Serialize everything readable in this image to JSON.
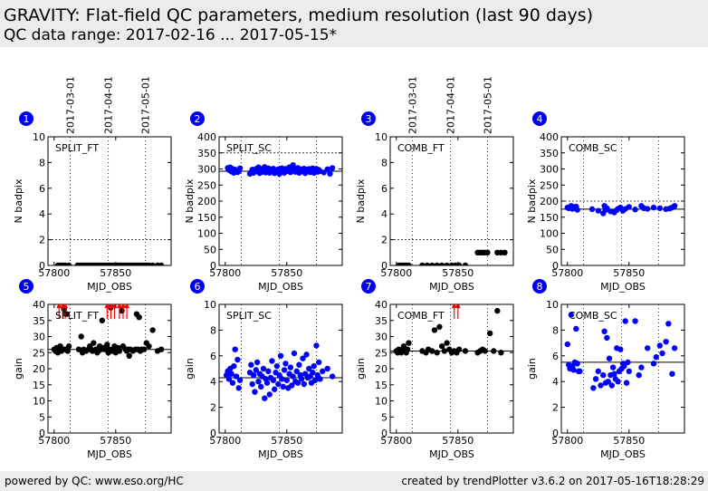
{
  "header": {
    "title": "GRAVITY: Flat-field QC parameters, medium resolution (last 90 days)",
    "subtitle": "QC data range: 2017-02-16 ... 2017-05-15*"
  },
  "footer": {
    "left": "powered by QC: www.eso.org/HC",
    "right": "created by trendPlotter v3.6.2 on 2017-05-16T18:28:29"
  },
  "colors": {
    "blue": "#0000ff",
    "black": "#000000",
    "red": "#ff0000",
    "badge": "#0000ee"
  },
  "date_labels": [
    {
      "label": "2017-03-01",
      "mjd": 57813
    },
    {
      "label": "2017-04-01",
      "mjd": 57844
    },
    {
      "label": "2017-05-01",
      "mjd": 57874
    }
  ],
  "chart_data": [
    {
      "id": "1",
      "type": "scatter",
      "label": "SPLIT_FT",
      "xlabel": "MJD_OBS",
      "ylabel": "N badpix",
      "xlim": [
        57795,
        57895
      ],
      "ylim": [
        0,
        10
      ],
      "yticks": [
        0,
        2,
        4,
        6,
        8,
        10
      ],
      "xticks": [
        57800,
        57850
      ],
      "ref_line": 0,
      "threshold": 2,
      "color": "black",
      "show_dates": true,
      "x": [
        57803,
        57805,
        57807,
        57809,
        57812,
        57819,
        57821,
        57823,
        57825,
        57827,
        57829,
        57831,
        57833,
        57835,
        57837,
        57839,
        57841,
        57843,
        57845,
        57847,
        57849,
        57851,
        57853,
        57855,
        57857,
        57859,
        57861,
        57863,
        57865,
        57867,
        57869,
        57871,
        57873,
        57875,
        57877,
        57880,
        57884,
        57887
      ],
      "y": [
        0,
        0,
        0,
        0,
        0,
        0,
        0,
        0,
        0,
        0,
        0,
        0,
        0,
        0,
        0,
        0,
        0,
        0,
        0,
        0,
        0,
        0,
        0,
        0,
        0,
        0,
        0,
        0,
        0,
        0,
        0,
        0,
        0,
        0,
        0,
        0,
        0,
        0
      ]
    },
    {
      "id": "2",
      "type": "scatter",
      "label": "SPLIT_SC",
      "xlabel": "MJD_OBS",
      "ylabel": "N badpix",
      "xlim": [
        57795,
        57895
      ],
      "ylim": [
        0,
        400
      ],
      "yticks": [
        0,
        50,
        100,
        150,
        200,
        250,
        300,
        350,
        400
      ],
      "xticks": [
        57800,
        57850
      ],
      "ref_line": 293,
      "threshold": 350,
      "color": "blue",
      "show_dates": false,
      "x": [
        57802,
        57803,
        57804,
        57805,
        57806,
        57807,
        57808,
        57809,
        57810,
        57811,
        57812,
        57820,
        57821,
        57822,
        57823,
        57824,
        57825,
        57826,
        57827,
        57828,
        57829,
        57830,
        57831,
        57832,
        57833,
        57834,
        57835,
        57836,
        57837,
        57838,
        57839,
        57840,
        57841,
        57842,
        57843,
        57844,
        57845,
        57846,
        57847,
        57848,
        57849,
        57850,
        57851,
        57852,
        57853,
        57854,
        57855,
        57856,
        57857,
        57858,
        57859,
        57860,
        57861,
        57862,
        57863,
        57864,
        57865,
        57866,
        57867,
        57868,
        57869,
        57870,
        57871,
        57872,
        57873,
        57874,
        57875,
        57876,
        57877,
        57880,
        57883,
        57885,
        57887
      ],
      "y": [
        303,
        297,
        305,
        292,
        300,
        288,
        298,
        295,
        290,
        293,
        302,
        285,
        290,
        298,
        288,
        295,
        300,
        292,
        305,
        287,
        296,
        300,
        291,
        306,
        289,
        295,
        302,
        288,
        297,
        292,
        301,
        287,
        296,
        290,
        299,
        285,
        295,
        302,
        291,
        288,
        300,
        297,
        293,
        305,
        290,
        298,
        312,
        295,
        291,
        300,
        303,
        288,
        296,
        299,
        292,
        301,
        287,
        298,
        294,
        300,
        290,
        296,
        302,
        288,
        295,
        300,
        291,
        297,
        293,
        289,
        299,
        285,
        303
      ]
    },
    {
      "id": "3",
      "type": "scatter",
      "label": "COMB_FT",
      "xlabel": "MJD_OBS",
      "ylabel": "N badpix",
      "xlim": [
        57795,
        57895
      ],
      "ylim": [
        0,
        10
      ],
      "yticks": [
        0,
        2,
        4,
        6,
        8,
        10
      ],
      "xticks": [
        57800,
        57850
      ],
      "ref_line": 0,
      "threshold": 2,
      "color": "black",
      "show_dates": true,
      "x": [
        57802,
        57804,
        57806,
        57808,
        57810,
        57821,
        57825,
        57829,
        57833,
        57837,
        57841,
        57845,
        57848,
        57851,
        57856,
        57866,
        57868,
        57870,
        57872,
        57874,
        57882,
        57885,
        57888
      ],
      "y": [
        0,
        0,
        0,
        0,
        0,
        0,
        0,
        0,
        0,
        0,
        0,
        0,
        0,
        0,
        0,
        1,
        1,
        1,
        1,
        1,
        1,
        1,
        1
      ]
    },
    {
      "id": "4",
      "type": "scatter",
      "label": "COMB_SC",
      "xlabel": "MJD_OBS",
      "ylabel": "N badpix",
      "xlim": [
        57795,
        57895
      ],
      "ylim": [
        0,
        400
      ],
      "yticks": [
        0,
        50,
        100,
        150,
        200,
        250,
        300,
        350,
        400
      ],
      "xticks": [
        57800,
        57850
      ],
      "ref_line": 175,
      "threshold": 200,
      "color": "blue",
      "show_dates": false,
      "x": [
        57800,
        57801,
        57802,
        57803,
        57804,
        57805,
        57806,
        57807,
        57808,
        57820,
        57825,
        57829,
        57830,
        57831,
        57832,
        57835,
        57838,
        57840,
        57841,
        57843,
        57845,
        57847,
        57850,
        57855,
        57860,
        57862,
        57865,
        57870,
        57875,
        57880,
        57883,
        57885,
        57887
      ],
      "y": [
        180,
        178,
        182,
        185,
        176,
        179,
        181,
        183,
        173,
        175,
        170,
        162,
        185,
        173,
        178,
        168,
        165,
        172,
        176,
        180,
        170,
        176,
        182,
        174,
        185,
        178,
        176,
        180,
        178,
        175,
        177,
        180,
        185
      ]
    },
    {
      "id": "5",
      "type": "scatter",
      "label": "SPLIT_FT",
      "xlabel": "MJD_OBS",
      "ylabel": "gain",
      "xlim": [
        57795,
        57895
      ],
      "ylim": [
        0,
        40
      ],
      "yticks": [
        0,
        5,
        10,
        15,
        20,
        25,
        30,
        35,
        40
      ],
      "xticks": [
        57800,
        57850
      ],
      "ref_line": 26,
      "threshold": null,
      "color": "black",
      "show_dates": false,
      "x": [
        57800,
        57801,
        57802,
        57803,
        57804,
        57805,
        57806,
        57807,
        57808,
        57809,
        57810,
        57811,
        57812,
        57820,
        57822,
        57823,
        57824,
        57826,
        57828,
        57829,
        57830,
        57831,
        57832,
        57834,
        57835,
        57836,
        57837,
        57838,
        57839,
        57840,
        57841,
        57843,
        57844,
        57845,
        57846,
        57847,
        57848,
        57849,
        57850,
        57851,
        57852,
        57853,
        57855,
        57856,
        57858,
        57859,
        57860,
        57861,
        57862,
        57864,
        57866,
        57867,
        57868,
        57869,
        57870,
        57871,
        57873,
        57875,
        57877,
        57880,
        57884,
        57887
      ],
      "y": [
        26,
        25.5,
        26.5,
        25,
        26,
        27,
        25.5,
        26,
        38.5,
        26,
        37,
        25.5,
        27,
        26,
        30,
        25,
        26,
        25.5,
        26,
        27,
        26,
        25.5,
        28,
        26,
        25,
        25.5,
        27,
        26,
        35,
        26.5,
        26,
        27.5,
        25,
        26,
        39,
        25.5,
        26,
        27,
        25,
        26,
        26.5,
        25.5,
        38,
        27,
        26,
        25.5,
        26,
        24,
        26,
        25.5,
        26,
        37,
        26,
        36,
        25.5,
        26,
        26,
        28,
        27,
        32,
        25.5,
        26
      ],
      "markers": [
        {
          "x": 57804,
          "y": 38
        },
        {
          "x": 57807,
          "y": 38
        },
        {
          "x": 57809,
          "y": 38
        },
        {
          "x": 57843,
          "y": 38
        },
        {
          "x": 57846,
          "y": 38
        },
        {
          "x": 57849,
          "y": 38
        },
        {
          "x": 57853,
          "y": 38
        },
        {
          "x": 57856,
          "y": 38
        },
        {
          "x": 57859,
          "y": 38
        }
      ]
    },
    {
      "id": "6",
      "type": "scatter",
      "label": "SPLIT_SC",
      "xlabel": "MJD_OBS",
      "ylabel": "gain",
      "xlim": [
        57795,
        57895
      ],
      "ylim": [
        0,
        10
      ],
      "yticks": [
        0,
        2,
        4,
        6,
        8,
        10
      ],
      "xticks": [
        57800,
        57850
      ],
      "ref_line": 4.3,
      "threshold": null,
      "color": "blue",
      "show_dates": false,
      "x": [
        57801,
        57802,
        57803,
        57804,
        57805,
        57806,
        57807,
        57808,
        57809,
        57810,
        57811,
        57812,
        57820,
        57821,
        57822,
        57823,
        57824,
        57825,
        57826,
        57827,
        57828,
        57829,
        57830,
        57831,
        57832,
        57833,
        57834,
        57835,
        57836,
        57837,
        57838,
        57839,
        57840,
        57841,
        57842,
        57843,
        57844,
        57845,
        57846,
        57847,
        57848,
        57849,
        57850,
        57851,
        57852,
        57853,
        57854,
        57855,
        57856,
        57857,
        57858,
        57859,
        57860,
        57861,
        57862,
        57863,
        57864,
        57865,
        57866,
        57867,
        57868,
        57869,
        57870,
        57871,
        57872,
        57873,
        57874,
        57875,
        57876,
        57877,
        57879,
        57883,
        57887
      ],
      "y": [
        4.5,
        4.8,
        4.2,
        5.0,
        4.6,
        3.9,
        5.2,
        6.5,
        4.4,
        5.7,
        3.5,
        4.1,
        4.7,
        5.3,
        3.8,
        4.5,
        3.2,
        4.9,
        5.5,
        4.0,
        4.6,
        3.6,
        4.4,
        5.0,
        2.7,
        4.2,
        3.9,
        4.8,
        3.0,
        4.3,
        5.6,
        4.1,
        3.4,
        4.7,
        5.2,
        3.8,
        4.5,
        6.0,
        4.2,
        3.6,
        4.9,
        5.4,
        4.1,
        3.5,
        4.6,
        5.1,
        3.7,
        4.4,
        6.2,
        4.0,
        4.8,
        3.9,
        5.3,
        4.5,
        4.2,
        5.8,
        3.8,
        4.6,
        6.1,
        4.3,
        5.0,
        4.4,
        3.9,
        4.7,
        5.2,
        4.1,
        6.8,
        4.5,
        5.5,
        4.2,
        4.8,
        5.0,
        4.4
      ]
    },
    {
      "id": "7",
      "type": "scatter",
      "label": "COMB_FT",
      "xlabel": "MJD_OBS",
      "ylabel": "gain",
      "xlim": [
        57795,
        57895
      ],
      "ylim": [
        0,
        40
      ],
      "yticks": [
        0,
        5,
        10,
        15,
        20,
        25,
        30,
        35,
        40
      ],
      "xticks": [
        57800,
        57850
      ],
      "ref_line": 25.5,
      "threshold": null,
      "color": "black",
      "show_dates": false,
      "x": [
        57800,
        57801,
        57802,
        57803,
        57804,
        57805,
        57806,
        57807,
        57808,
        57809,
        57810,
        57821,
        57824,
        57826,
        57829,
        57831,
        57833,
        57835,
        57837,
        57839,
        57841,
        57843,
        57845,
        57847,
        57849,
        57851,
        57856,
        57866,
        57868,
        57870,
        57872,
        57876,
        57879,
        57882,
        57885
      ],
      "y": [
        25.5,
        25,
        26,
        25.5,
        25,
        26,
        27,
        25.5,
        25,
        26,
        28,
        25.5,
        25,
        26,
        25.5,
        32,
        25,
        33,
        27,
        25.5,
        28,
        26,
        25,
        25.5,
        25,
        26,
        25.5,
        25,
        25.5,
        26,
        25.5,
        31,
        25.5,
        38,
        25
      ],
      "markers": [
        {
          "x": 57847,
          "y": 38
        },
        {
          "x": 57850,
          "y": 38
        }
      ]
    },
    {
      "id": "8",
      "type": "scatter",
      "label": "COMB_SC",
      "xlabel": "MJD_OBS",
      "ylabel": "gain",
      "xlim": [
        57795,
        57895
      ],
      "ylim": [
        0,
        10
      ],
      "yticks": [
        0,
        2,
        4,
        6,
        8,
        10
      ],
      "xticks": [
        57800,
        57850
      ],
      "ref_line": 5.5,
      "threshold": null,
      "color": "blue",
      "show_dates": false,
      "x": [
        57800,
        57801,
        57802,
        57803,
        57804,
        57805,
        57806,
        57807,
        57808,
        57809,
        57810,
        57821,
        57823,
        57825,
        57827,
        57829,
        57830,
        57831,
        57832,
        57833,
        57834,
        57835,
        57836,
        57837,
        57838,
        57839,
        57840,
        57841,
        57842,
        57843,
        57844,
        57845,
        57846,
        57847,
        57848,
        57849,
        57850,
        57855,
        57858,
        57860,
        57865,
        57870,
        57872,
        57875,
        57877,
        57880,
        57882,
        57885,
        57887
      ],
      "y": [
        6.9,
        5.3,
        5.0,
        9.2,
        5.2,
        4.9,
        5.5,
        8.1,
        5.4,
        4.8,
        4.8,
        3.5,
        4.2,
        4.8,
        3.7,
        4.5,
        7.9,
        3.9,
        7.4,
        4.0,
        5.8,
        4.5,
        3.7,
        5.1,
        4.6,
        4.2,
        6.6,
        4.0,
        4.8,
        6.5,
        5.0,
        5.4,
        5.2,
        8.7,
        3.9,
        5.5,
        4.8,
        8.7,
        4.5,
        5.1,
        6.6,
        5.4,
        5.9,
        6.8,
        6.2,
        7.1,
        8.5,
        4.6,
        6.6
      ]
    }
  ]
}
